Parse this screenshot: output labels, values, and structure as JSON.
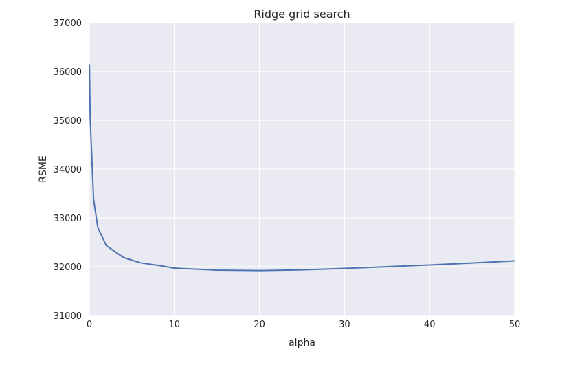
{
  "chart_data": {
    "type": "line",
    "title": "Ridge grid search",
    "xlabel": "alpha",
    "ylabel": "RSME",
    "xlim": [
      0,
      50
    ],
    "ylim": [
      31000,
      37000
    ],
    "xticks": [
      0,
      10,
      20,
      30,
      40,
      50
    ],
    "yticks": [
      31000,
      32000,
      33000,
      34000,
      35000,
      36000,
      37000
    ],
    "grid": true,
    "background": "#eaeaf2",
    "grid_color": "#ffffff",
    "series": [
      {
        "color": "#4c72b0",
        "x": [
          0.01,
          0.1,
          0.5,
          1,
          2,
          4,
          6,
          8,
          10,
          15,
          20,
          25,
          30,
          35,
          40,
          45,
          50
        ],
        "y": [
          36150,
          35050,
          33380,
          32800,
          32430,
          32190,
          32080,
          32030,
          31970,
          31930,
          31920,
          31935,
          31965,
          32000,
          32035,
          32075,
          32120
        ]
      }
    ]
  }
}
